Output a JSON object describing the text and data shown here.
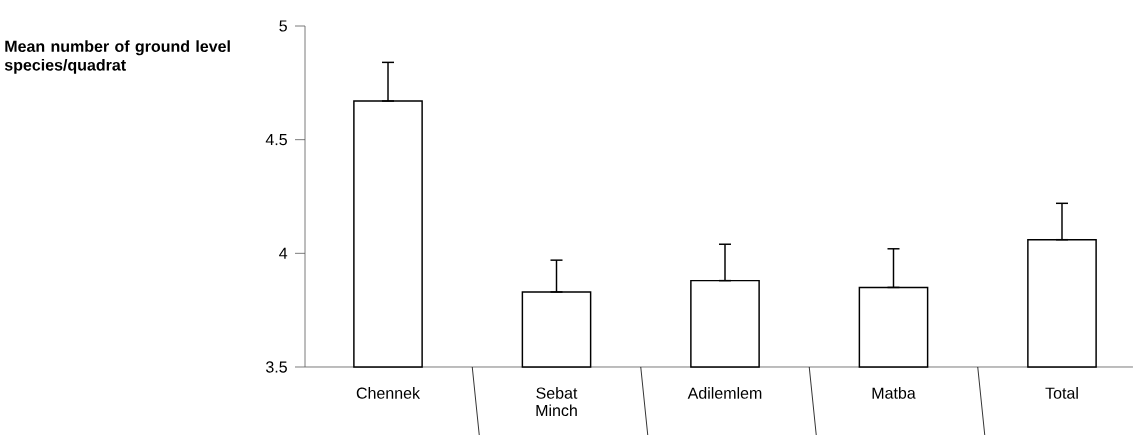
{
  "chart_data": {
    "type": "bar",
    "ylabel": "Mean number of ground level species/quadrat",
    "categories": [
      "Chennek",
      "Sebat Minch",
      "Adilemlem",
      "Matba",
      "Total"
    ],
    "values": [
      4.67,
      3.83,
      3.88,
      3.85,
      4.06
    ],
    "errors": [
      [
        4.67,
        4.84
      ],
      [
        3.83,
        3.97
      ],
      [
        3.88,
        4.04
      ],
      [
        3.85,
        4.02
      ],
      [
        4.06,
        4.22
      ]
    ],
    "color": "#ffffff",
    "ylim": [
      3.5,
      5
    ],
    "yticks": [
      3.5,
      4,
      4.5,
      5
    ]
  }
}
